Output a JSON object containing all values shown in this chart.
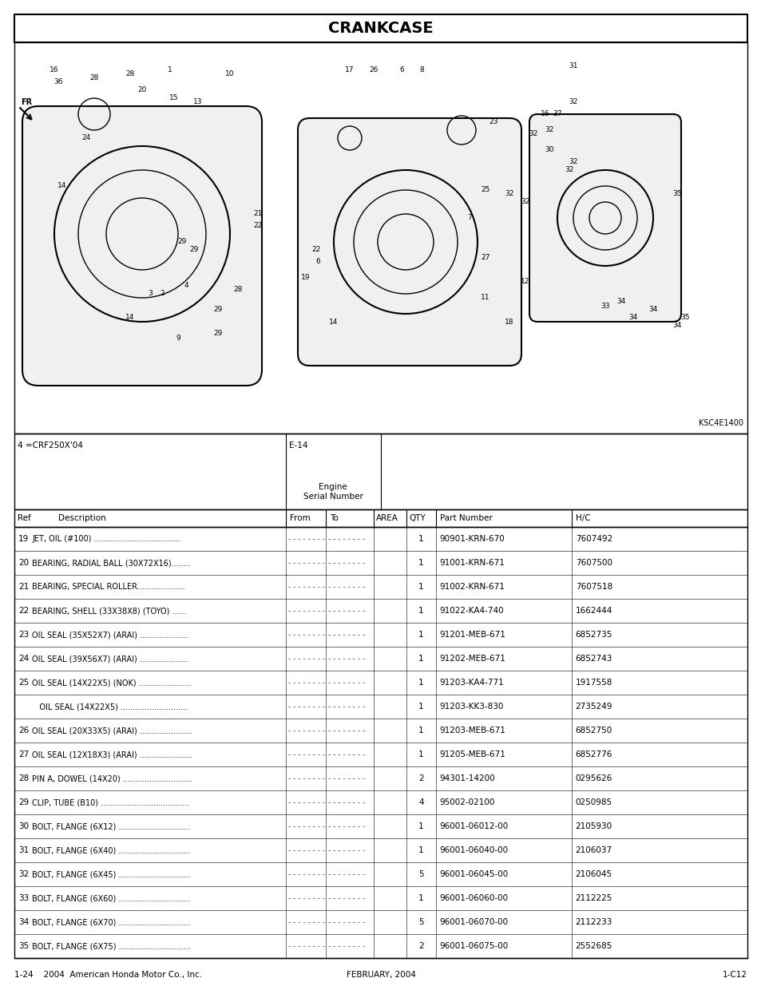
{
  "title": "CRANKCASE",
  "subtitle_left": "4 =CRF250X'04",
  "subtitle_right": "E-14",
  "engine_serial_label": "Engine\nSerial Number",
  "col_headers": [
    "Ref",
    "Description",
    "From",
    "To",
    "AREA",
    "QTY",
    "Part Number",
    "H/C"
  ],
  "rows": [
    {
      "ref": "19",
      "desc": "JET, OIL (#100) ....................................",
      "from": "- - - - - - - -",
      "to": "- - - - - - - -",
      "area": "",
      "qty": "1",
      "part": "90901-KRN-670",
      "hc": "7607492"
    },
    {
      "ref": "20",
      "desc": "BEARING, RADIAL BALL (30X72X16)........",
      "from": "- - - - - - - -",
      "to": "- - - - - - - -",
      "area": "",
      "qty": "1",
      "part": "91001-KRN-671",
      "hc": "7607500"
    },
    {
      "ref": "21",
      "desc": "BEARING, SPECIAL ROLLER....................",
      "from": "- - - - - - - -",
      "to": "- - - - - - - -",
      "area": "",
      "qty": "1",
      "part": "91002-KRN-671",
      "hc": "7607518"
    },
    {
      "ref": "22",
      "desc": "BEARING, SHELL (33X38X8) (TOYO) ......",
      "from": "- - - - - - - -",
      "to": "- - - - - - - -",
      "area": "",
      "qty": "1",
      "part": "91022-KA4-740",
      "hc": "1662444"
    },
    {
      "ref": "23",
      "desc": "OIL SEAL (35X52X7) (ARAI) ....................",
      "from": "- - - - - - - -",
      "to": "- - - - - - - -",
      "area": "",
      "qty": "1",
      "part": "91201-MEB-671",
      "hc": "6852735"
    },
    {
      "ref": "24",
      "desc": "OIL SEAL (39X56X7) (ARAI) ....................",
      "from": "- - - - - - - -",
      "to": "- - - - - - - -",
      "area": "",
      "qty": "1",
      "part": "91202-MEB-671",
      "hc": "6852743"
    },
    {
      "ref": "25",
      "desc": "OIL SEAL (14X22X5) (NOK) ......................",
      "from": "- - - - - - - -",
      "to": "- - - - - - - -",
      "area": "",
      "qty": "1",
      "part": "91203-KA4-771",
      "hc": "1917558"
    },
    {
      "ref": "",
      "desc": "   OIL SEAL (14X22X5) ............................",
      "from": "- - - - - - - -",
      "to": "- - - - - - - -",
      "area": "",
      "qty": "1",
      "part": "91203-KK3-830",
      "hc": "2735249"
    },
    {
      "ref": "26",
      "desc": "OIL SEAL (20X33X5) (ARAI) ......................",
      "from": "- - - - - - - -",
      "to": "- - - - - - - -",
      "area": "",
      "qty": "1",
      "part": "91203-MEB-671",
      "hc": "6852750"
    },
    {
      "ref": "27",
      "desc": "OIL SEAL (12X18X3) (ARAI) ......................",
      "from": "- - - - - - - -",
      "to": "- - - - - - - -",
      "area": "",
      "qty": "1",
      "part": "91205-MEB-671",
      "hc": "6852776"
    },
    {
      "ref": "28",
      "desc": "PIN A, DOWEL (14X20) .............................",
      "from": "- - - - - - - -",
      "to": "- - - - - - - -",
      "area": "",
      "qty": "2",
      "part": "94301-14200",
      "hc": "0295626"
    },
    {
      "ref": "29",
      "desc": "CLIP, TUBE (B10) .....................................",
      "from": "- - - - - - - -",
      "to": "- - - - - - - -",
      "area": "",
      "qty": "4",
      "part": "95002-02100",
      "hc": "0250985"
    },
    {
      "ref": "30",
      "desc": "BOLT, FLANGE (6X12) ..............................",
      "from": "- - - - - - - -",
      "to": "- - - - - - - -",
      "area": "",
      "qty": "1",
      "part": "96001-06012-00",
      "hc": "2105930"
    },
    {
      "ref": "31",
      "desc": "BOLT, FLANGE (6X40) ..............................",
      "from": "- - - - - - - -",
      "to": "- - - - - - - -",
      "area": "",
      "qty": "1",
      "part": "96001-06040-00",
      "hc": "2106037"
    },
    {
      "ref": "32",
      "desc": "BOLT, FLANGE (6X45) ..............................",
      "from": "- - - - - - - -",
      "to": "- - - - - - - -",
      "area": "",
      "qty": "5",
      "part": "96001-06045-00",
      "hc": "2106045"
    },
    {
      "ref": "33",
      "desc": "BOLT, FLANGE (6X60) ..............................",
      "from": "- - - - - - - -",
      "to": "- - - - - - - -",
      "area": "",
      "qty": "1",
      "part": "96001-06060-00",
      "hc": "2112225"
    },
    {
      "ref": "34",
      "desc": "BOLT, FLANGE (6X70) ..............................",
      "from": "- - - - - - - -",
      "to": "- - - - - - - -",
      "area": "",
      "qty": "5",
      "part": "96001-06070-00",
      "hc": "2112233"
    },
    {
      "ref": "35",
      "desc": "BOLT, FLANGE (6X75) ..............................",
      "from": "- - - - - - - -",
      "to": "- - - - - - - -",
      "area": "",
      "qty": "2",
      "part": "96001-06075-00",
      "hc": "2552685"
    }
  ],
  "footer_left": "1-24    2004  American Honda Motor Co., Inc.",
  "footer_center": "FEBRUARY, 2004",
  "footer_right": "1-C12",
  "image_label": "KSC4E1400",
  "bg_color": "#ffffff",
  "border_color": "#000000",
  "text_color": "#000000"
}
